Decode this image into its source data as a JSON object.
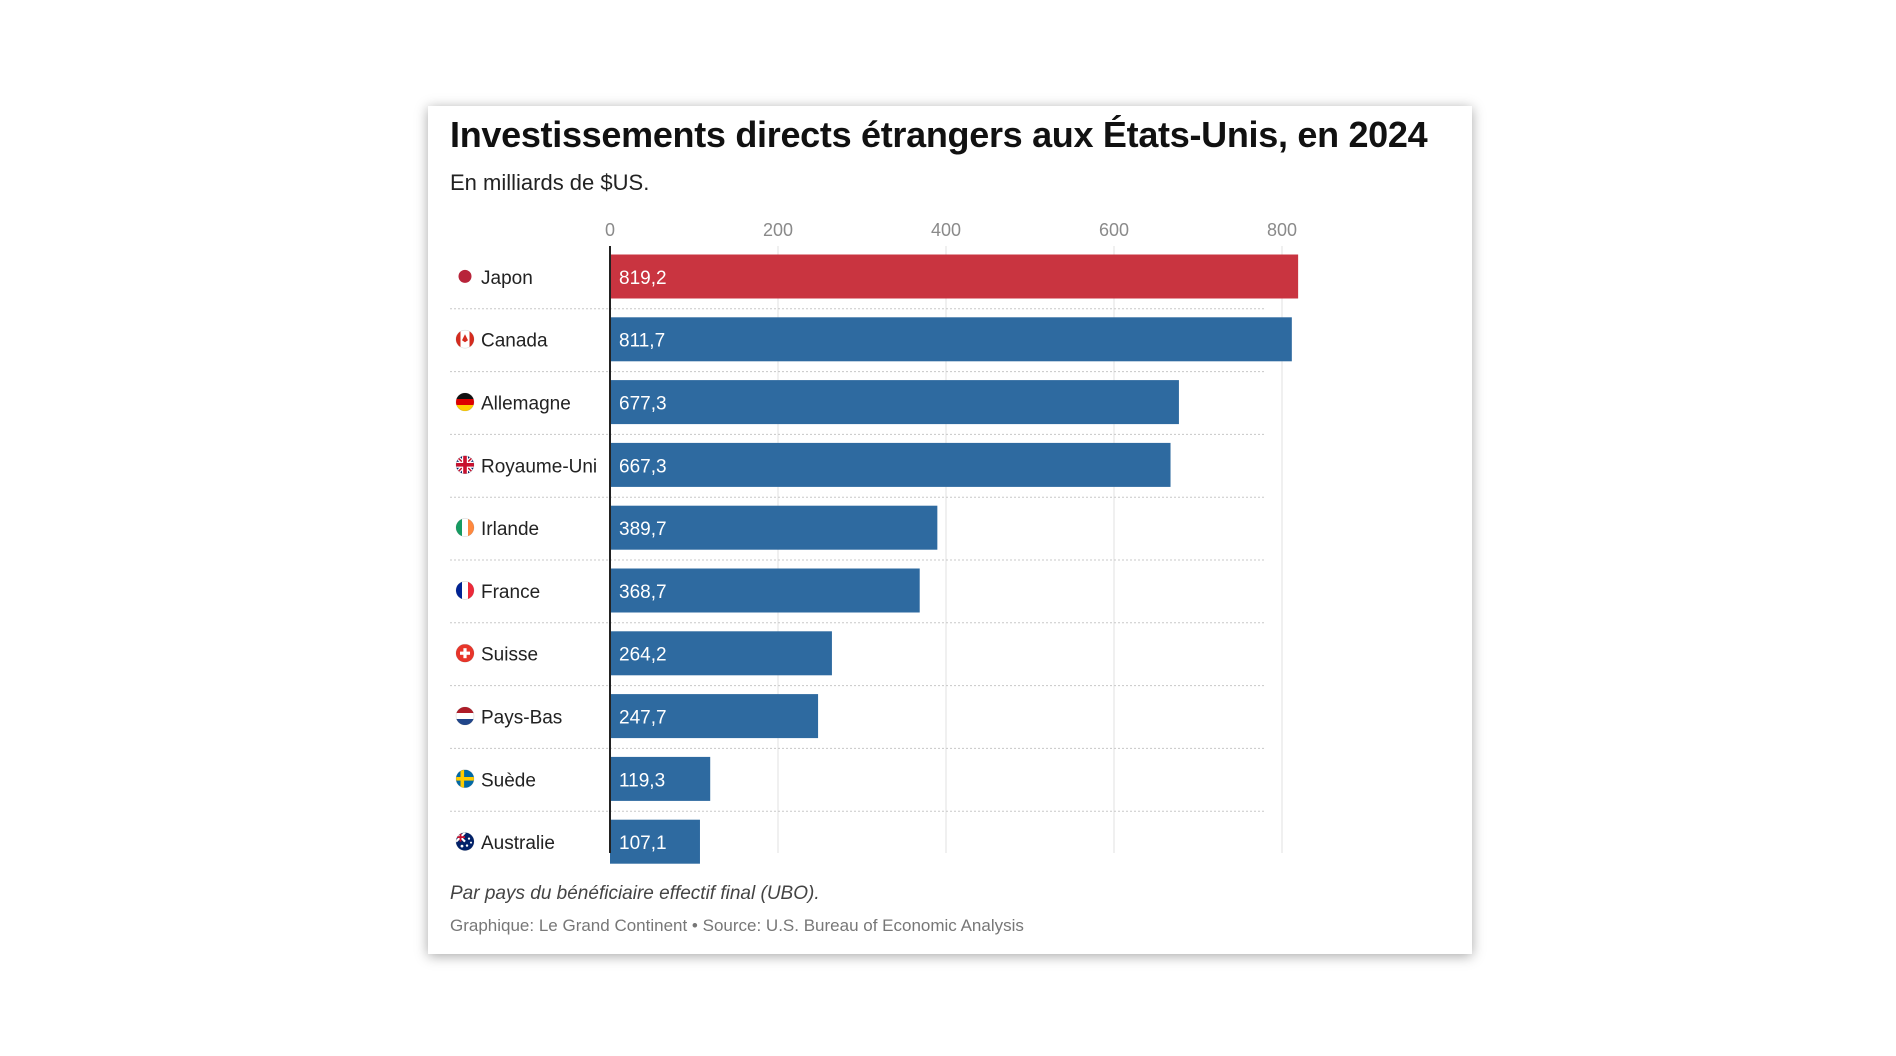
{
  "title": "Investissements directs étrangers aux États-Unis, en 2024",
  "subtitle": "En milliards de $US.",
  "note": "Par pays du bénéficiaire effectif final (UBO).",
  "source": "Graphique: Le Grand Continent • Source: U.S. Bureau of Economic Analysis",
  "colors": {
    "highlight": "#c93440",
    "default": "#2e6aa0"
  },
  "chart_data": {
    "type": "bar",
    "orientation": "horizontal",
    "title": "Investissements directs étrangers aux États-Unis, en 2024",
    "subtitle": "En milliards de $US.",
    "categories": [
      "Japon",
      "Canada",
      "Allemagne",
      "Royaume-Uni",
      "Irlande",
      "France",
      "Suisse",
      "Pays-Bas",
      "Suède",
      "Australie"
    ],
    "values": [
      819.2,
      811.7,
      677.3,
      667.3,
      389.7,
      368.7,
      264.2,
      247.7,
      119.3,
      107.1
    ],
    "value_labels": [
      "819,2",
      "811,7",
      "677,3",
      "667,3",
      "389,7",
      "368,7",
      "264,2",
      "247,7",
      "119,3",
      "107,1"
    ],
    "flags": [
      "japan-flag-icon",
      "canada-flag-icon",
      "germany-flag-icon",
      "uk-flag-icon",
      "ireland-flag-icon",
      "france-flag-icon",
      "switzerland-flag-icon",
      "netherlands-flag-icon",
      "sweden-flag-icon",
      "australia-flag-icon"
    ],
    "highlight_index": 0,
    "xticks": [
      0,
      200,
      400,
      600,
      800
    ],
    "xtick_labels": [
      "0",
      "200",
      "400",
      "600",
      "800"
    ],
    "xlim": [
      0,
      819.2
    ],
    "grid": true,
    "axis_position": "top"
  }
}
